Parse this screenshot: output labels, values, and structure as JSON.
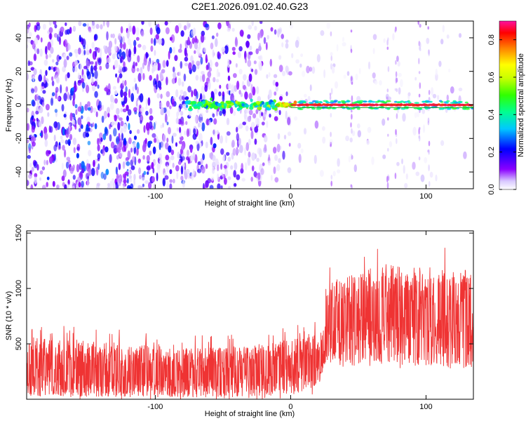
{
  "title": "C2E1.2026.091.02.40.G23",
  "colors": {
    "snr_fill": "#ef3333",
    "line_red": "#e8202a",
    "line_green": "#19a019",
    "frame": "#000000",
    "background": "#ffffff"
  },
  "chart_data": [
    {
      "type": "heatmap",
      "name": "spectrogram",
      "title": "",
      "xlabel": "Height of straight line (km)",
      "ylabel": "Frequency (Hz)",
      "xlim": [
        -195,
        135
      ],
      "ylim": [
        -50,
        50
      ],
      "xticks": [
        -100,
        0,
        100
      ],
      "yticks": [
        -40,
        -20,
        0,
        20,
        40
      ],
      "xtick_labels": [
        "-100",
        "0",
        "100"
      ],
      "ytick_labels": [
        "-40",
        "-20",
        "0",
        "20",
        "40"
      ],
      "overlay_lines": [
        {
          "color": "red",
          "x": [
            0,
            135
          ],
          "y": [
            0,
            0
          ]
        },
        {
          "color": "green",
          "x": [
            0,
            135
          ],
          "y": [
            -1,
            -1
          ]
        }
      ],
      "colorbar": {
        "label": "Normalized spectral amplitude",
        "range": [
          0,
          0.9
        ],
        "ticks": [
          0,
          0.2,
          0.4,
          0.6,
          0.8
        ],
        "tick_labels": [
          "0.0",
          "0.2",
          "0.4",
          "0.6",
          "0.8"
        ],
        "colormap": "rainbow-white"
      }
    },
    {
      "type": "area",
      "name": "snr",
      "title": "",
      "xlabel": "Height of straight line (km)",
      "ylabel": "SNR (10 * v/v)",
      "xlim": [
        -195,
        135
      ],
      "ylim": [
        0,
        1520
      ],
      "xticks": [
        -100,
        0,
        100
      ],
      "yticks": [
        500,
        1000,
        1500
      ],
      "xtick_labels": [
        "-100",
        "0",
        "100"
      ],
      "ytick_labels": [
        "500",
        "1000",
        "1500"
      ],
      "envelope": {
        "x": [
          -195,
          -160,
          -120,
          -80,
          -40,
          0,
          20,
          25,
          27,
          40,
          70,
          100,
          120,
          135
        ],
        "upper": [
          560,
          540,
          500,
          460,
          470,
          540,
          580,
          650,
          1050,
          1120,
          1220,
          1180,
          1150,
          1130
        ],
        "lower": [
          30,
          20,
          20,
          20,
          20,
          40,
          120,
          250,
          330,
          300,
          320,
          300,
          280,
          290
        ],
        "mean": [
          250,
          240,
          220,
          210,
          230,
          280,
          330,
          420,
          650,
          700,
          760,
          740,
          720,
          700
        ]
      }
    }
  ]
}
